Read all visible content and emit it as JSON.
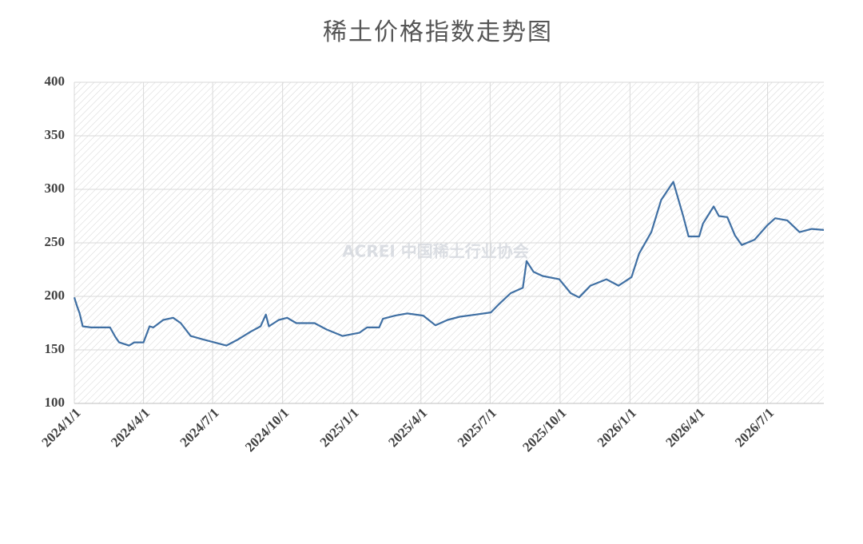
{
  "chart_data": {
    "type": "line",
    "title": "稀土价格指数走势图",
    "watermark": "ACREI 中国稀土行业协会",
    "x": [
      "2024/1/1",
      "2024/1/5",
      "2024/1/8",
      "2024/1/12",
      "2024/1/23",
      "2024/2/17",
      "2024/2/24",
      "2024/2/29",
      "2024/3/13",
      "2024/3/20",
      "2024/4/1",
      "2024/4/9",
      "2024/4/14",
      "2024/4/27",
      "2024/5/10",
      "2024/5/20",
      "2024/6/2",
      "2024/6/17",
      "2024/7/3",
      "2024/7/19",
      "2024/8/4",
      "2024/8/20",
      "2024/9/2",
      "2024/9/9",
      "2024/9/13",
      "2024/9/26",
      "2024/10/7",
      "2024/10/19",
      "2024/11/12",
      "2024/11/28",
      "2024/12/19",
      "2025/1/10",
      "2025/1/20",
      "2025/2/5",
      "2025/2/10",
      "2025/2/26",
      "2025/3/14",
      "2025/4/4",
      "2025/4/20",
      "2025/5/6",
      "2025/5/22",
      "2025/6/12",
      "2025/7/2",
      "2025/7/13",
      "2025/7/28",
      "2025/8/13",
      "2025/8/18",
      "2025/8/27",
      "2025/9/8",
      "2025/9/30",
      "2025/10/15",
      "2025/10/26",
      "2025/11/10",
      "2025/12/1",
      "2025/12/17",
      "2026/1/3",
      "2026/1/13",
      "2026/1/29",
      "2026/2/11",
      "2026/2/27",
      "2026/3/12",
      "2026/3/19",
      "2026/4/2",
      "2026/4/7",
      "2026/4/21",
      "2026/4/28",
      "2026/5/9",
      "2026/5/19",
      "2026/5/28",
      "2026/6/14",
      "2026/6/30",
      "2026/7/11",
      "2026/7/27",
      "2026/8/12",
      "2026/8/28",
      "2026/9/13"
    ],
    "series": [
      {
        "color": "#3f6fa3",
        "values": [
          199,
          190,
          184,
          172,
          171,
          171,
          162,
          157,
          154,
          157,
          157,
          172,
          171,
          178,
          180,
          175,
          163,
          160,
          157,
          154,
          160,
          167,
          172,
          183,
          172,
          178,
          180,
          175,
          175,
          169,
          163,
          166,
          171,
          171,
          179,
          182,
          184,
          182,
          173,
          178,
          181,
          183,
          185,
          193,
          203,
          208,
          233,
          223,
          219,
          216,
          203,
          199,
          210,
          216,
          210,
          218,
          240,
          260,
          290,
          307,
          275,
          256,
          256,
          268,
          284,
          275,
          274,
          257,
          248,
          253,
          266,
          273,
          271,
          260,
          263,
          262
        ]
      }
    ],
    "xlim": [
      "2024/1/1",
      "2026/9/13"
    ],
    "xticks": [
      "2024/1/1",
      "2024/4/1",
      "2024/7/1",
      "2024/10/1",
      "2025/1/1",
      "2025/4/1",
      "2025/7/1",
      "2025/10/1",
      "2026/1/1",
      "2026/4/1",
      "2026/7/1"
    ],
    "ylim": [
      100,
      400
    ],
    "yticks": [
      100,
      150,
      200,
      250,
      300,
      350,
      400
    ],
    "grid": true
  }
}
